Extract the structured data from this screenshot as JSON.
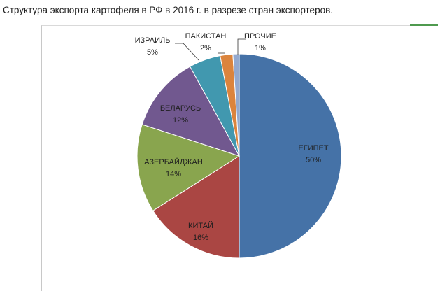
{
  "page": {
    "title": "Структура экспорта картофеля в РФ в 2016 г. в разрезе стран экспортеров."
  },
  "chart_data": {
    "type": "pie",
    "title": "",
    "slices": [
      {
        "name": "ЕГИПЕТ",
        "value": 50,
        "label": "50%",
        "color": "#4572A7"
      },
      {
        "name": "КИТАЙ",
        "value": 16,
        "label": "16%",
        "color": "#AA4643"
      },
      {
        "name": "АЗЕРБАЙДЖАН",
        "value": 14,
        "label": "14%",
        "color": "#89A54E"
      },
      {
        "name": "БЕЛАРУСЬ",
        "value": 12,
        "label": "12%",
        "color": "#71588F"
      },
      {
        "name": "ИЗРАИЛЬ",
        "value": 5,
        "label": "5%",
        "color": "#4198AF"
      },
      {
        "name": "ПАКИСТАН",
        "value": 2,
        "label": "2%",
        "color": "#DB843D"
      },
      {
        "name": "ПРОЧИЕ",
        "value": 1,
        "label": "1%",
        "color": "#93A9CF"
      }
    ],
    "legend": "none",
    "data_labels": "category-and-percent"
  }
}
